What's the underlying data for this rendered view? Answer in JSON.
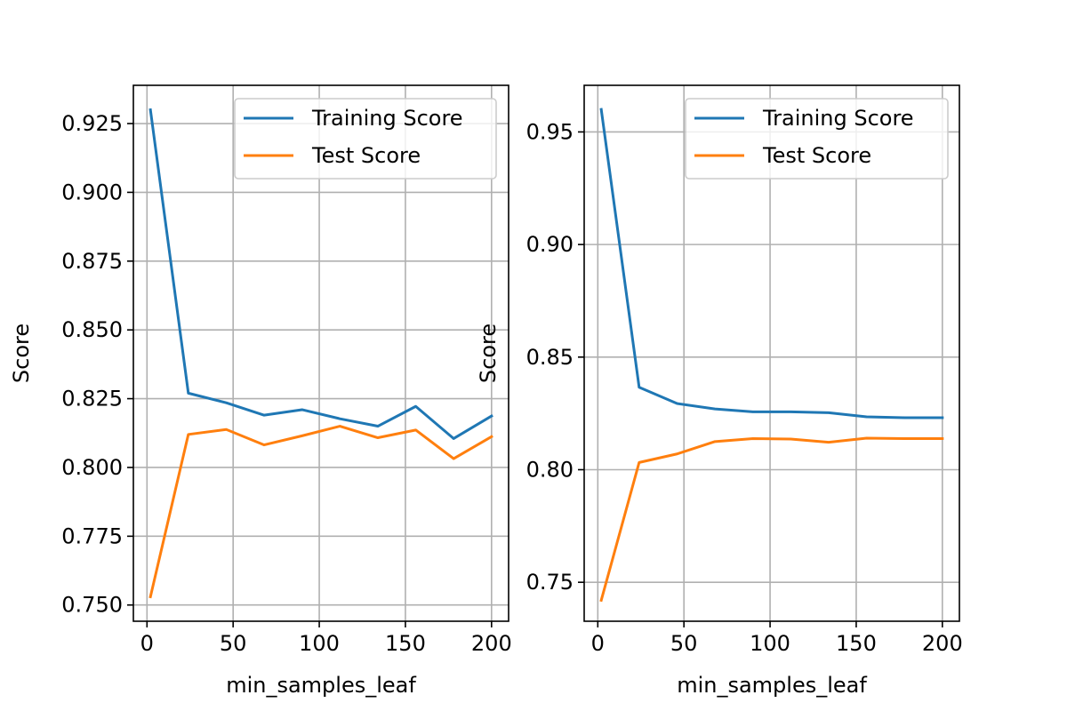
{
  "chart_data": [
    {
      "type": "line",
      "title": "",
      "xlabel": "min_samples_leaf",
      "ylabel": "Score",
      "xlim": [
        -7.9,
        209.9
      ],
      "ylim": [
        0.7441,
        0.9389
      ],
      "xticks": [
        0,
        50,
        100,
        150,
        200
      ],
      "xtick_labels": [
        "0",
        "50",
        "100",
        "150",
        "200"
      ],
      "yticks": [
        0.75,
        0.775,
        0.8,
        0.825,
        0.85,
        0.875,
        0.9,
        0.925
      ],
      "ytick_labels": [
        "0.750",
        "0.775",
        "0.800",
        "0.825",
        "0.850",
        "0.875",
        "0.900",
        "0.925"
      ],
      "grid": true,
      "legend": "upper right",
      "x": [
        2,
        24,
        46,
        68,
        90,
        112,
        134,
        156,
        178,
        200
      ],
      "series": [
        {
          "name": "Training Score",
          "color": "#1f77b4",
          "values": [
            0.93,
            0.827,
            0.8235,
            0.819,
            0.821,
            0.8177,
            0.815,
            0.8222,
            0.8105,
            0.8187
          ]
        },
        {
          "name": "Test Score",
          "color": "#ff7f0e",
          "values": [
            0.753,
            0.812,
            0.8138,
            0.8082,
            0.8115,
            0.815,
            0.8108,
            0.8136,
            0.8032,
            0.8112
          ]
        }
      ]
    },
    {
      "type": "line",
      "title": "",
      "xlabel": "min_samples_leaf",
      "ylabel": "Score",
      "xlim": [
        -7.9,
        209.9
      ],
      "ylim": [
        0.7327,
        0.9707
      ],
      "xticks": [
        0,
        50,
        100,
        150,
        200
      ],
      "xtick_labels": [
        "0",
        "50",
        "100",
        "150",
        "200"
      ],
      "yticks": [
        0.75,
        0.8,
        0.85,
        0.9,
        0.95
      ],
      "ytick_labels": [
        "0.75",
        "0.80",
        "0.85",
        "0.90",
        "0.95"
      ],
      "grid": true,
      "legend": "upper right",
      "x": [
        2,
        24,
        46,
        68,
        90,
        112,
        134,
        156,
        178,
        200
      ],
      "series": [
        {
          "name": "Training Score",
          "color": "#1f77b4",
          "values": [
            0.96,
            0.8366,
            0.8294,
            0.827,
            0.8257,
            0.8257,
            0.8253,
            0.8235,
            0.8231,
            0.8231
          ]
        },
        {
          "name": "Test Score",
          "color": "#ff7f0e",
          "values": [
            0.742,
            0.8032,
            0.807,
            0.8125,
            0.8138,
            0.8136,
            0.8122,
            0.814,
            0.8138,
            0.8138
          ]
        }
      ]
    }
  ]
}
